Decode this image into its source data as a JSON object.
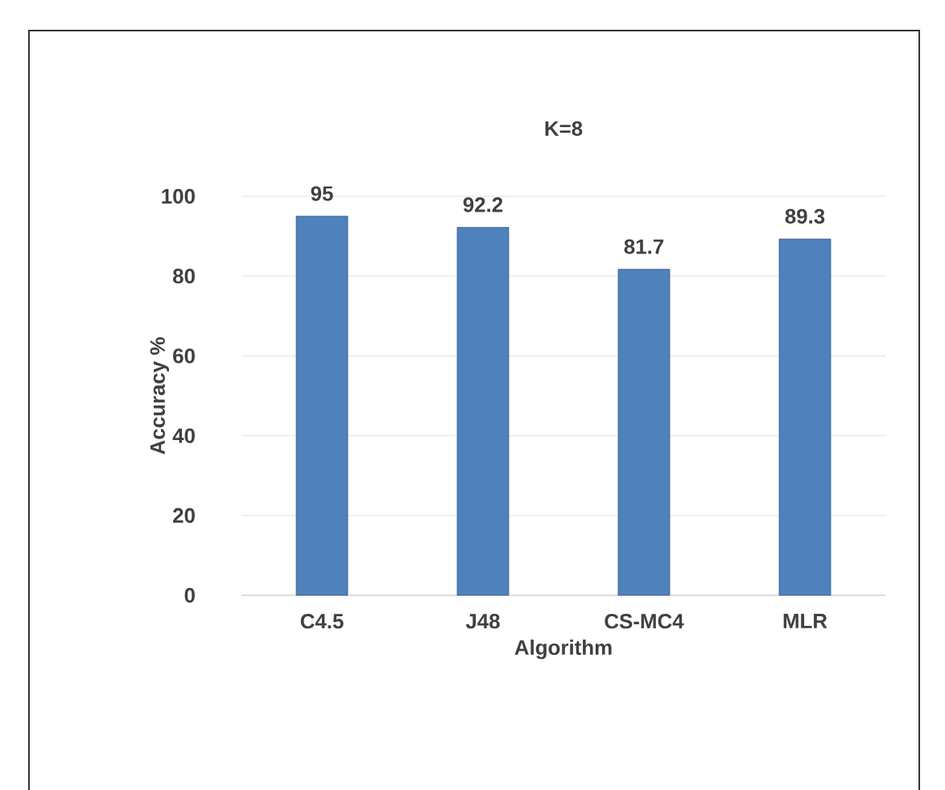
{
  "chart_data": {
    "type": "bar",
    "title": "K=8",
    "xlabel": "Algorithm",
    "ylabel": "Accuracy %",
    "categories": [
      "C4.5",
      "J48",
      "CS-MC4",
      "MLR"
    ],
    "values": [
      95,
      92.2,
      81.7,
      89.3
    ],
    "color": "#4f81bd",
    "ylim": [
      0,
      100
    ],
    "yticks": [
      0,
      20,
      40,
      60,
      80,
      100
    ],
    "grid": "y",
    "data_labels": true
  }
}
